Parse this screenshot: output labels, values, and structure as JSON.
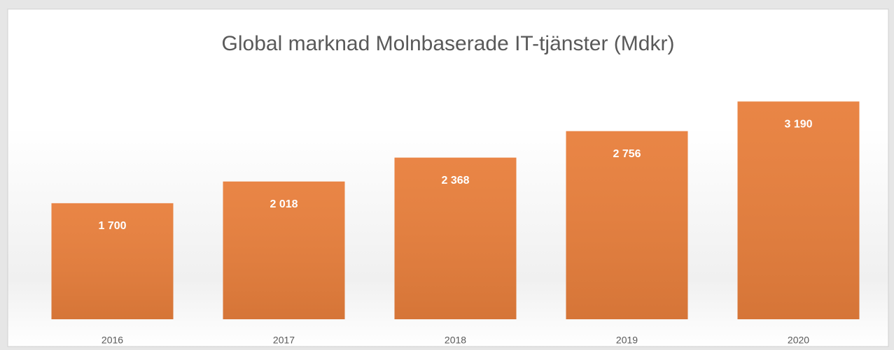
{
  "chart_data": {
    "type": "bar",
    "title": "Global marknad Molnbaserade IT-tjänster (Mdkr)",
    "categories": [
      "2016",
      "2017",
      "2018",
      "2019",
      "2020"
    ],
    "values": [
      1700,
      2018,
      2368,
      2756,
      3190
    ],
    "value_labels": [
      "1 700",
      "2 018",
      "2 368",
      "2 756",
      "3 190"
    ],
    "color": "#e87f3c",
    "ylim": [
      0,
      3500
    ]
  }
}
